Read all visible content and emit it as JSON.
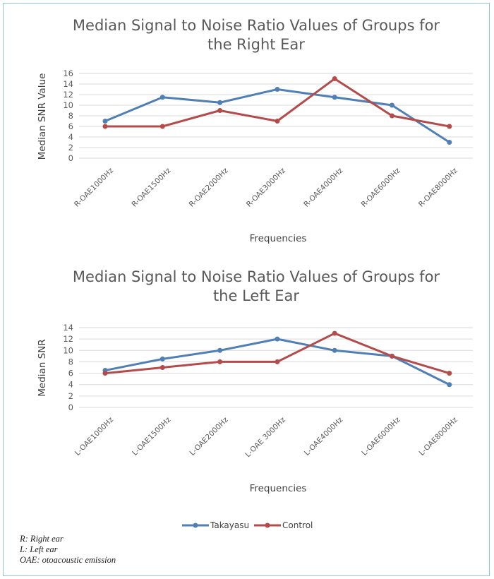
{
  "colors": {
    "takayasu": "#4f7fb5",
    "control": "#b44b4b",
    "grid": "#d9d9d9",
    "border": "#8fc6cf"
  },
  "legend": {
    "series1": "Takayasu",
    "series2": "Control"
  },
  "notes": [
    {
      "abbr": "R",
      "text": ": Right ear"
    },
    {
      "abbr": "L",
      "text": ": Left ear"
    },
    {
      "abbr": "OAE",
      "text": ": otoacoustic emission"
    }
  ],
  "chart_data": [
    {
      "type": "line",
      "title": [
        "Median Signal to Noise Ratio Values of Groups for",
        "the Right Ear"
      ],
      "xlabel": "Frequencies",
      "ylabel": "Median SNR Value",
      "categories": [
        "R-OAE1000Hz",
        "R-OAE1500Hz",
        "R-OAE2000Hz",
        "R-OAE3000Hz",
        "R-OAE4000Hz",
        "R-OAE6000Hz",
        "R-OAE8000Hz"
      ],
      "series": [
        {
          "name": "Takayasu",
          "values": [
            7,
            11.5,
            10.5,
            13,
            11.5,
            10,
            3
          ]
        },
        {
          "name": "Control",
          "values": [
            6,
            6,
            9,
            7,
            15,
            8,
            6
          ]
        }
      ],
      "ylim": [
        0,
        16
      ],
      "yticks": [
        0,
        2,
        4,
        6,
        8,
        10,
        12,
        14,
        16
      ],
      "grid": true
    },
    {
      "type": "line",
      "title": [
        "Median Signal to Noise Ratio Values of Groups for",
        "the Left Ear"
      ],
      "xlabel": "Frequencies",
      "ylabel": "Median SNR",
      "categories": [
        "L-OAE1000Hz",
        "L-OAE1500Hz",
        "L-OAE2000Hz",
        "L-OAE 3000Hz",
        "L-OAE4000Hz",
        "L-OAE6000Hz",
        "L-OAE8000Hz"
      ],
      "series": [
        {
          "name": "Takayasu",
          "values": [
            6.5,
            8.5,
            10,
            12,
            10,
            9,
            4
          ]
        },
        {
          "name": "Control",
          "values": [
            6,
            7,
            8,
            8,
            13,
            9,
            6
          ]
        }
      ],
      "ylim": [
        0,
        14
      ],
      "yticks": [
        0,
        2,
        4,
        6,
        8,
        10,
        12,
        14
      ],
      "grid": true
    }
  ]
}
